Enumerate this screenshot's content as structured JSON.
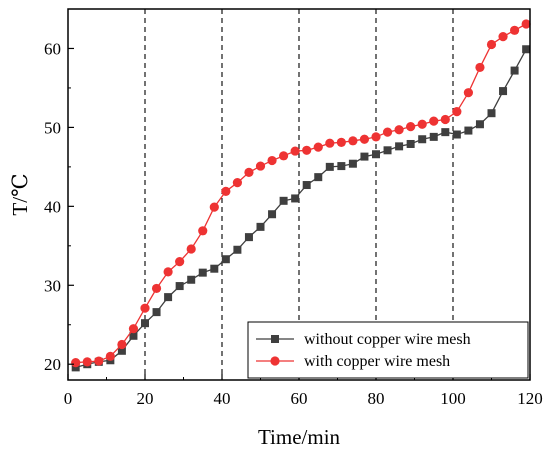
{
  "chart_data": {
    "type": "line",
    "title": "",
    "xlabel": "Time/min",
    "ylabel": "T/℃",
    "xlim": [
      0,
      120
    ],
    "ylim": [
      18,
      65
    ],
    "xticks": [
      0,
      20,
      40,
      60,
      80,
      100,
      120
    ],
    "yticks": [
      20,
      30,
      40,
      50,
      60
    ],
    "vlines": [
      20,
      40,
      60,
      80,
      100
    ],
    "grid": false,
    "legend_position": "bottom-right",
    "series": [
      {
        "name": "without copper wire mesh",
        "color": "#3f3f3f",
        "marker": "square",
        "x": [
          2,
          5,
          8,
          11,
          14,
          17,
          20,
          23,
          26,
          29,
          32,
          35,
          38,
          41,
          44,
          47,
          50,
          53,
          56,
          59,
          62,
          65,
          68,
          71,
          74,
          77,
          80,
          83,
          86,
          89,
          92,
          95,
          98,
          101,
          104,
          107,
          110,
          113,
          116,
          119
        ],
        "y": [
          19.6,
          20.0,
          20.3,
          20.5,
          21.7,
          23.6,
          25.2,
          26.6,
          28.5,
          29.9,
          30.7,
          31.6,
          32.1,
          33.3,
          34.5,
          36.1,
          37.4,
          39.0,
          40.7,
          41.0,
          42.7,
          43.7,
          45.0,
          45.1,
          45.4,
          46.3,
          46.6,
          47.1,
          47.6,
          47.9,
          48.5,
          48.8,
          49.4,
          49.1,
          49.6,
          50.4,
          51.8,
          54.6,
          57.2,
          59.9
        ]
      },
      {
        "name": "with copper wire mesh",
        "color": "#ee3333",
        "marker": "circle",
        "x": [
          2,
          5,
          8,
          11,
          14,
          17,
          20,
          23,
          26,
          29,
          32,
          35,
          38,
          41,
          44,
          47,
          50,
          53,
          56,
          59,
          62,
          65,
          68,
          71,
          74,
          77,
          80,
          83,
          86,
          89,
          92,
          95,
          98,
          101,
          104,
          107,
          110,
          113,
          116,
          119
        ],
        "y": [
          20.2,
          20.3,
          20.4,
          21.0,
          22.5,
          24.5,
          27.1,
          29.6,
          31.7,
          33.0,
          34.6,
          36.9,
          39.9,
          41.9,
          43.0,
          44.3,
          45.1,
          45.8,
          46.4,
          47.0,
          47.1,
          47.5,
          48.0,
          48.1,
          48.3,
          48.5,
          48.8,
          49.4,
          49.7,
          50.1,
          50.4,
          50.8,
          51.0,
          52.0,
          54.4,
          57.6,
          60.5,
          61.5,
          62.3,
          63.1
        ]
      }
    ]
  }
}
